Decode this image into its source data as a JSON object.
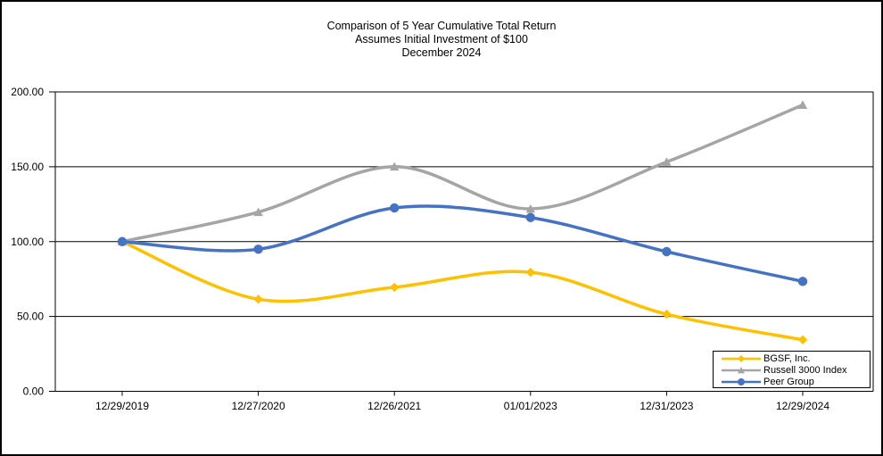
{
  "figure": {
    "background": "#ffffff",
    "border_color": "#000000"
  },
  "title": {
    "line1": "Comparison of 5 Year Cumulative Total Return",
    "line2": "Assumes Initial Investment of $100",
    "line3": "December 2024"
  },
  "chart_data": {
    "type": "line",
    "title": "Comparison of 5 Year Cumulative Total Return",
    "subtitle": "Assumes Initial Investment of $100",
    "period_label": "December 2024",
    "categories": [
      "12/29/2019",
      "12/27/2020",
      "12/26/2021",
      "01/01/2023",
      "12/31/2023",
      "12/29/2024"
    ],
    "series": [
      {
        "name": "BGSF, Inc.",
        "color": "#FFC000",
        "marker": "diamond",
        "values": [
          100,
          61.5,
          69.5,
          79.5,
          51.5,
          34.4
        ]
      },
      {
        "name": "Russell 3000 Index",
        "color": "#A5A5A5",
        "marker": "triangle",
        "values": [
          100,
          119.7,
          150.1,
          121.9,
          153.2,
          191.3
        ]
      },
      {
        "name": "Peer Group",
        "color": "#4472C4",
        "marker": "circle",
        "values": [
          100,
          94.9,
          122.5,
          116.1,
          93.3,
          73.4
        ]
      }
    ],
    "y_axis": {
      "min": 0,
      "max": 200,
      "tick_interval": 50,
      "tick_labels": [
        "0.00",
        "50.00",
        "100.00",
        "150.00",
        "200.00"
      ]
    },
    "grid": true,
    "smooth_lines": true,
    "axis_color": "#000000",
    "legend": {
      "position": "bottom-right",
      "bordered": true
    }
  }
}
